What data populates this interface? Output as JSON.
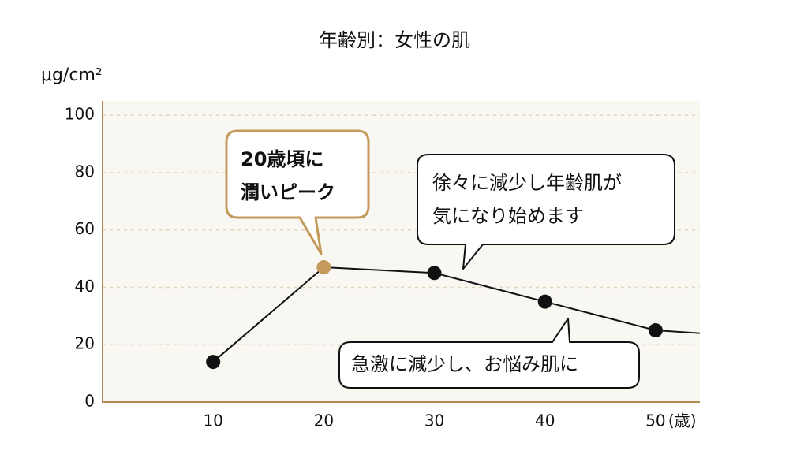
{
  "chart_data": {
    "type": "line",
    "title": "年齢別：女性の肌",
    "y_label": "μg/cm²",
    "x_unit": "(歳)",
    "x": [
      10,
      20,
      30,
      40,
      50,
      54
    ],
    "series": [
      {
        "values": [
          14,
          47,
          45,
          35,
          25,
          24
        ],
        "color": "#111111",
        "marker_colors": [
          "#111111",
          "#c49a5c",
          "#111111",
          "#111111",
          "#111111",
          null
        ]
      }
    ],
    "xlim": [
      0,
      54
    ],
    "xticks": [
      10,
      20,
      30,
      40,
      50
    ],
    "ylim": [
      0,
      105
    ],
    "yticks": [
      0,
      20,
      40,
      60,
      80,
      100
    ],
    "grid": true,
    "annotations": [
      {
        "lines": [
          "20歳頃に",
          "潤いピーク"
        ],
        "color": "#c49a5c",
        "bold": true
      },
      {
        "lines": [
          "徐々に減少し年齢肌が",
          "気になり始めます"
        ],
        "color": "#111111",
        "bold": false
      },
      {
        "lines": [
          "急激に減少し、お悩み肌に"
        ],
        "color": "#111111",
        "bold": false
      }
    ]
  }
}
